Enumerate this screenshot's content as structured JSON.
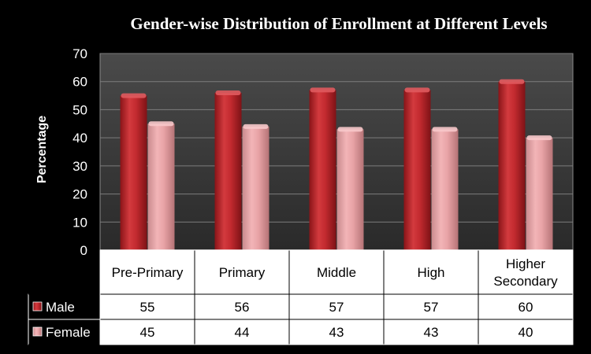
{
  "chart_data": {
    "type": "bar",
    "title": "Gender-wise Distribution of Enrollment at Different Levels",
    "xlabel": "",
    "ylabel": "Percentage",
    "ylim": [
      0,
      70
    ],
    "yticks": [
      0,
      10,
      20,
      30,
      40,
      50,
      60,
      70
    ],
    "grid": true,
    "legend": "data-table",
    "categories": [
      "Pre-Primary",
      "Primary",
      "Middle",
      "High",
      "Higher Secondary"
    ],
    "category_lines": [
      [
        "Pre-Primary"
      ],
      [
        "Primary"
      ],
      [
        "Middle"
      ],
      [
        "High"
      ],
      [
        "Higher",
        "Secondary"
      ]
    ],
    "series": [
      {
        "name": "Male",
        "values": [
          55,
          56,
          57,
          57,
          60
        ],
        "color": "#c0282d"
      },
      {
        "name": "Female",
        "values": [
          45,
          44,
          43,
          43,
          40
        ],
        "color": "#e6a0a3"
      }
    ]
  }
}
